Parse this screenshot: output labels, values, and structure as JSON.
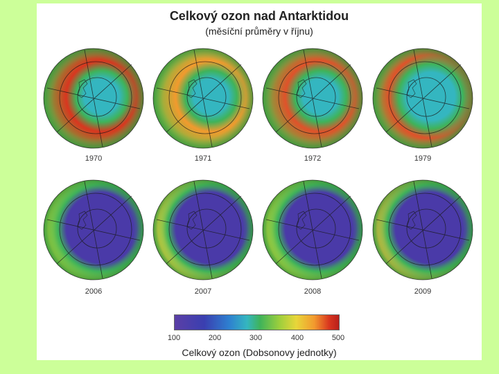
{
  "title": "Celkový ozon nad Antarktidou",
  "subtitle": "(měsíční průměry v říjnu)",
  "globes": [
    {
      "year": "1970",
      "hole": "small",
      "ring_color": "#d9361f"
    },
    {
      "year": "1971",
      "hole": "small",
      "ring_color": "#f29a2e"
    },
    {
      "year": "1972",
      "hole": "small",
      "ring_color": "#e0522a"
    },
    {
      "year": "1979",
      "hole": "medium",
      "ring_color": "#e0522a"
    },
    {
      "year": "2006",
      "hole": "large",
      "ring_color": "#9ecf3c"
    },
    {
      "year": "2007",
      "hole": "large",
      "ring_color": "#e8d63a"
    },
    {
      "year": "2008",
      "hole": "large",
      "ring_color": "#b9d83a"
    },
    {
      "year": "2009",
      "hole": "large",
      "ring_color": "#e8c23a"
    }
  ],
  "colorbar": {
    "ticks": [
      "100",
      "200",
      "300",
      "400",
      "500"
    ],
    "caption": "Celkový ozon (Dobsonovy jednotky)"
  }
}
